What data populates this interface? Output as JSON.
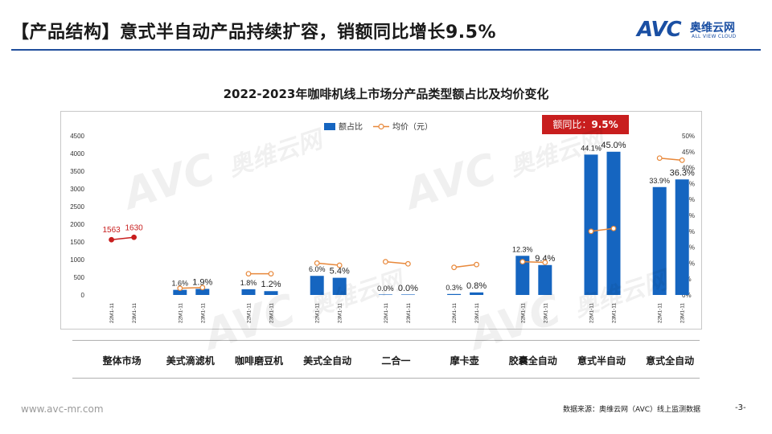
{
  "header": {
    "title": "【产品结构】意式半自动产品持续扩容，销额同比增长9.5%",
    "logo_mark": "AVC",
    "logo_cn": "奥维云网",
    "logo_en": "ALL VIEW CLOUD"
  },
  "yoy_box": {
    "label": "额同比：",
    "value": "9.5%"
  },
  "footer": {
    "website": "www.avc-mr.com",
    "source": "数据来源：奥维云网（AVC）线上监测数据",
    "page": "-3-"
  },
  "watermark": {
    "mark": "AVC",
    "cn": "奥维云网",
    "en": "ALL VIEW CLOUD"
  },
  "colors": {
    "bar": "#1565c0",
    "line": "#e8883a",
    "highlight": "#c81e1e",
    "brand": "#1a4fa3"
  },
  "chart_data": {
    "type": "bar",
    "title": "2022-2023年咖啡机线上市场分产品类型额占比及均价变化",
    "categories": [
      "整体市场",
      "美式滴滤机",
      "咖啡磨豆机",
      "美式全自动",
      "二合一",
      "摩卡壶",
      "胶囊全自动",
      "意式半自动",
      "意式全自动"
    ],
    "periods": [
      "22M1-11",
      "23M1-11"
    ],
    "series": [
      {
        "name": "额占比",
        "axis": "right",
        "type": "bar",
        "values": [
          [
            null,
            null
          ],
          [
            1.6,
            1.9
          ],
          [
            1.8,
            1.2
          ],
          [
            6.0,
            5.4
          ],
          [
            0.0,
            0.0
          ],
          [
            0.3,
            0.8
          ],
          [
            12.3,
            9.4
          ],
          [
            44.1,
            45.0
          ],
          [
            33.9,
            36.3
          ]
        ],
        "labels": [
          [
            "",
            ""
          ],
          [
            "1.6%",
            "1.9%"
          ],
          [
            "1.8%",
            "1.2%"
          ],
          [
            "6.0%",
            "5.4%"
          ],
          [
            "0.0%",
            "0.0%"
          ],
          [
            "0.3%",
            "0.8%"
          ],
          [
            "12.3%",
            "9.4%"
          ],
          [
            "44.1%",
            "45.0%"
          ],
          [
            "33.9%",
            "36.3%"
          ]
        ]
      },
      {
        "name": "均价（元）",
        "axis": "left",
        "type": "line",
        "values": [
          [
            1563,
            1630
          ],
          [
            190,
            210
          ],
          [
            600,
            600
          ],
          [
            900,
            840
          ],
          [
            940,
            880
          ],
          [
            780,
            860
          ],
          [
            940,
            920
          ],
          [
            1800,
            1880
          ],
          [
            3870,
            3810
          ]
        ],
        "labels": [
          [
            "1563",
            "1630"
          ],
          [
            "",
            ""
          ],
          [
            "",
            ""
          ],
          [
            "",
            ""
          ],
          [
            "",
            ""
          ],
          [
            "",
            ""
          ],
          [
            "",
            ""
          ],
          [
            "",
            ""
          ],
          [
            "",
            ""
          ]
        ]
      }
    ],
    "y_left": {
      "min": 0,
      "max": 4500,
      "ticks": [
        "0",
        "500",
        "1000",
        "1500",
        "2000",
        "2500",
        "3000",
        "3500",
        "4000",
        "4500"
      ]
    },
    "y_right": {
      "min": 0,
      "max": 50,
      "ticks": [
        "0%",
        "5%",
        "10%",
        "15%",
        "20%",
        "25%",
        "30%",
        "35%",
        "40%",
        "45%",
        "50%"
      ]
    },
    "legend": {
      "position": "top-center"
    }
  }
}
